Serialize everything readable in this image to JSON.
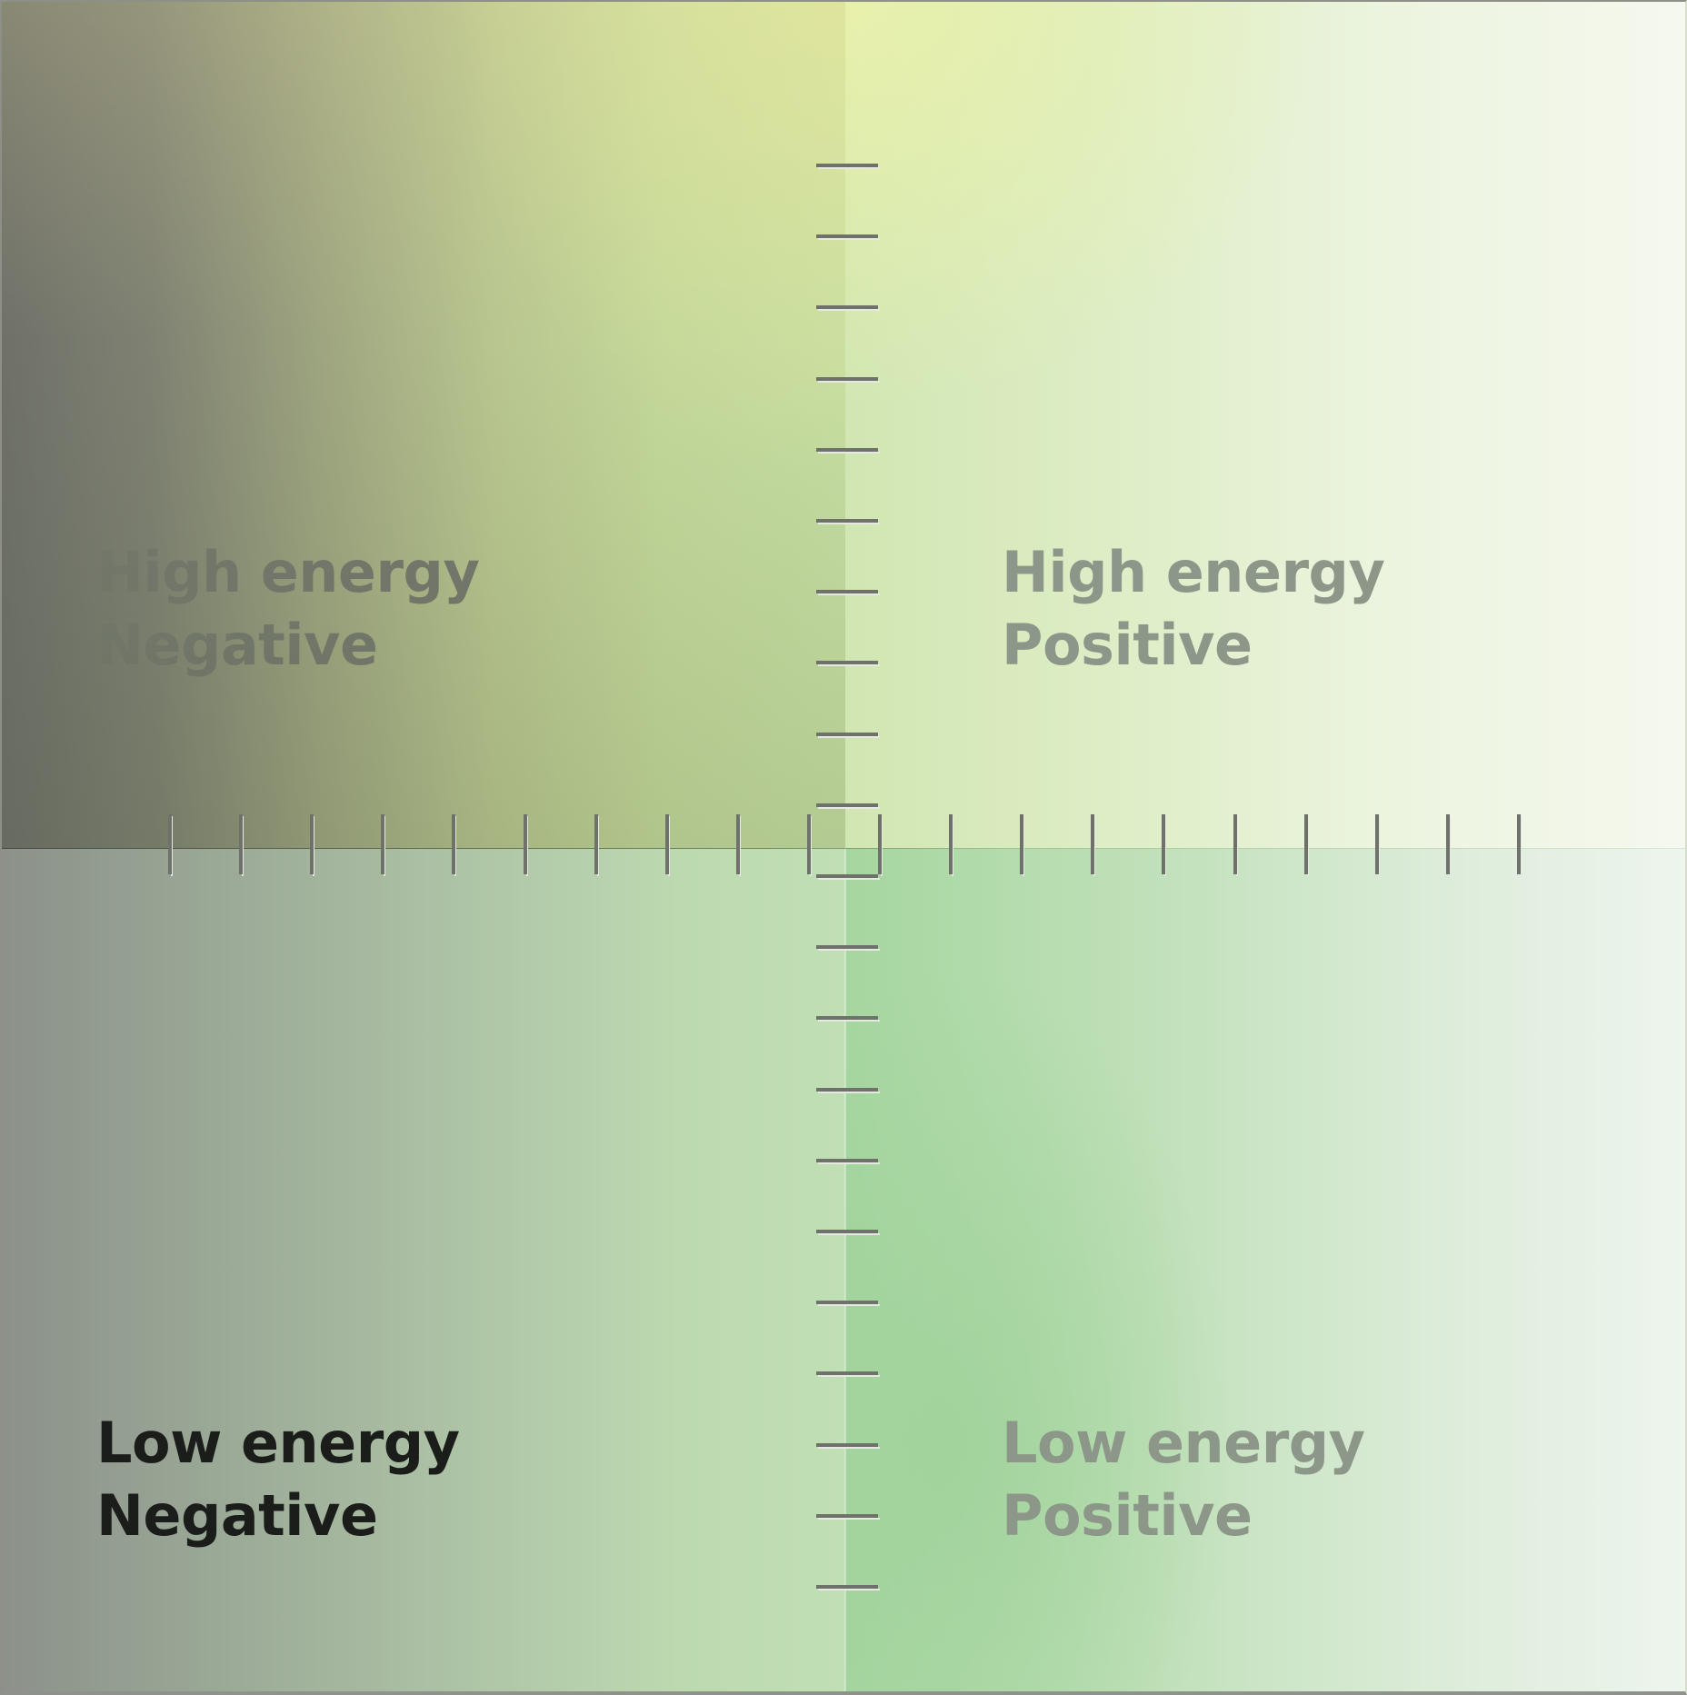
{
  "quadrants": {
    "high_negative": {
      "line1": "High energy",
      "line2": "Negative",
      "selected": false
    },
    "high_positive": {
      "line1": "High energy",
      "line2": "Positive",
      "selected": false
    },
    "low_negative": {
      "line1": "Low energy",
      "line2": "Negative",
      "selected": true
    },
    "low_positive": {
      "line1": "Low energy",
      "line2": "Positive",
      "selected": false
    }
  },
  "colors": {
    "tick": "#6f726b",
    "tick_highlight": "#e6e9e2",
    "selected_text": "#1b1d1b",
    "unselected_text": "#8c978a"
  }
}
